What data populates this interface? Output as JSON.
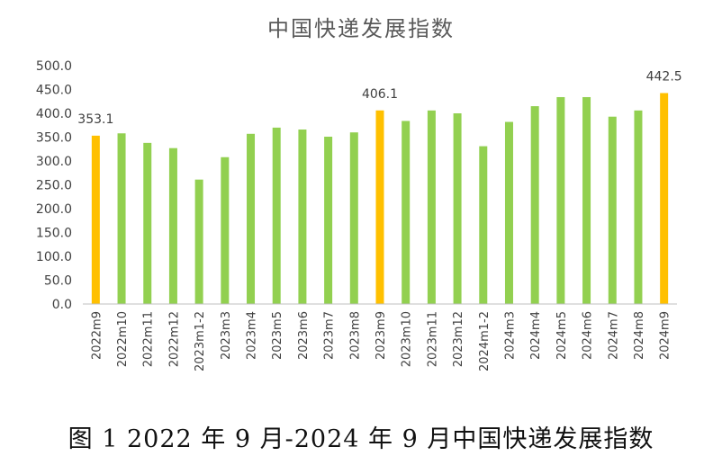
{
  "chart_data": {
    "type": "bar",
    "title": "中国快递发展指数",
    "categories": [
      "2022m9",
      "2022m10",
      "2022m11",
      "2022m12",
      "2023m1-2",
      "2023m3",
      "2023m4",
      "2023m5",
      "2023m6",
      "2023m7",
      "2023m8",
      "2023m9",
      "2023m10",
      "2023m11",
      "2023m12",
      "2024m1-2",
      "2024m3",
      "2024m4",
      "2024m5",
      "2024m6",
      "2024m7",
      "2024m8",
      "2024m9"
    ],
    "values": [
      353.1,
      358,
      338,
      327,
      261,
      308,
      357,
      370,
      366,
      351,
      360,
      406.1,
      384,
      406,
      400,
      331,
      382,
      415,
      434,
      434,
      393,
      406,
      442.5
    ],
    "highlighted": [
      "2022m9",
      "2023m9",
      "2024m9"
    ],
    "data_labels": [
      {
        "category": "2022m9",
        "text": "353.1"
      },
      {
        "category": "2023m9",
        "text": "406.1"
      },
      {
        "category": "2024m9",
        "text": "442.5"
      }
    ],
    "ylim": [
      0,
      500
    ],
    "yticks": [
      "0.0",
      "50.0",
      "100.0",
      "150.0",
      "200.0",
      "250.0",
      "300.0",
      "350.0",
      "400.0",
      "450.0",
      "500.0"
    ],
    "grid": false,
    "colors": {
      "bar": "#92D050",
      "highlight": "#FFC000",
      "axis": "#BFBFBF",
      "text": "#404040"
    }
  },
  "caption": "图 1 2022 年 9 月-2024 年 9 月中国快递发展指数"
}
